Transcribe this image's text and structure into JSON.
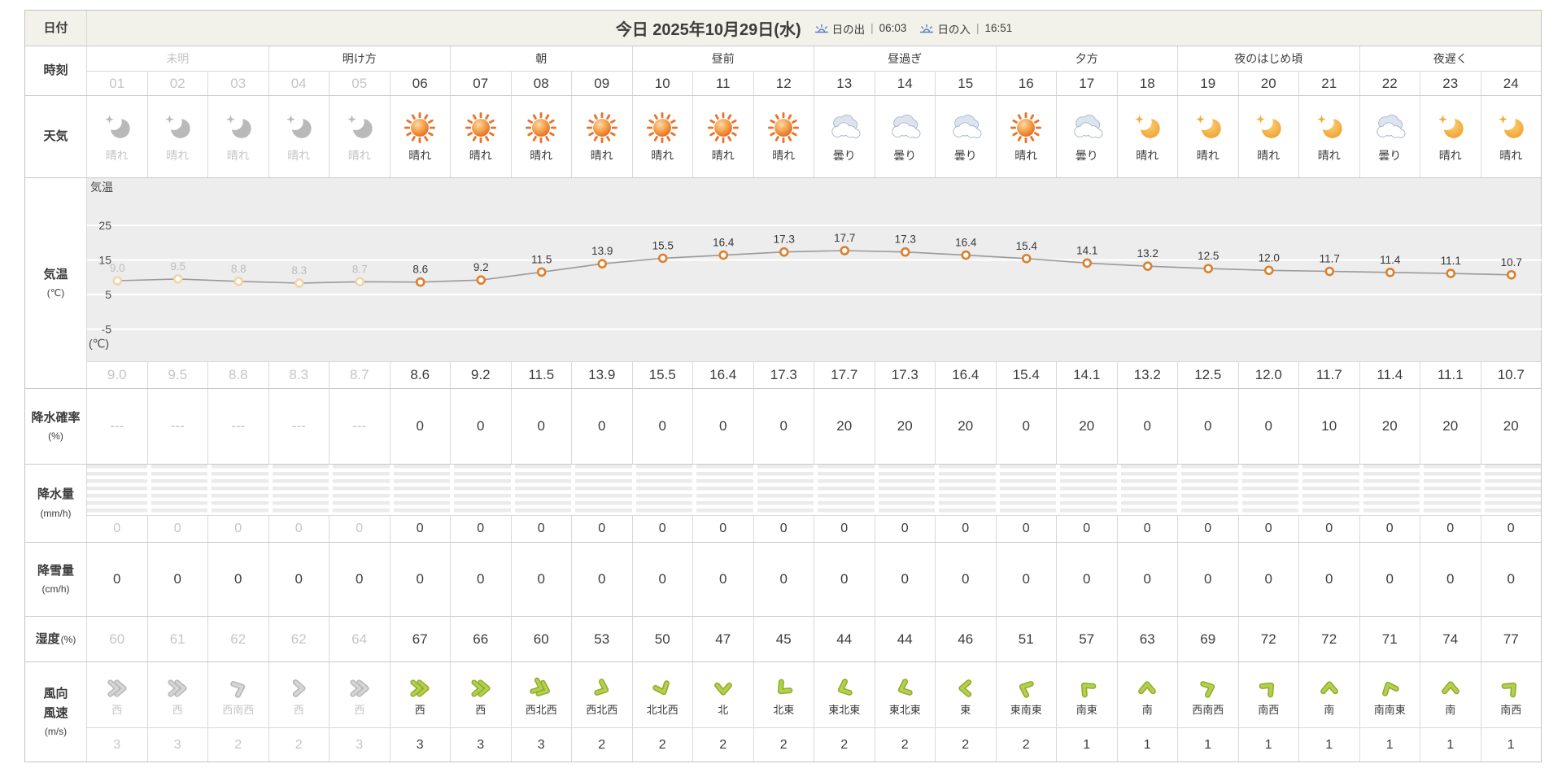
{
  "colors": {
    "text": "#3c3c3c",
    "past_text": "#c5c5c5",
    "date_row_bg": "#f2f2ea",
    "chart_bg": "#ededed",
    "border": "#c9c9c9",
    "sun_orange": "#e8732e",
    "moon_orange": "#f0a733",
    "cloud_blue": "#dde4f0",
    "wind_green": "#9db53b",
    "point_orange": "#dd7f2b",
    "point_past": "#f2d4a6",
    "sunrise_icon_blue": "#5b7cc4"
  },
  "date_row": {
    "label": "日付",
    "title": "今日 2025年10月29日(水)",
    "sunrise": {
      "icon": "sunrise-icon",
      "label": "日の出",
      "sep": "|",
      "time": "06:03"
    },
    "sunset": {
      "icon": "sunset-icon",
      "label": "日の入",
      "sep": "|",
      "time": "16:51"
    }
  },
  "time_row": {
    "label": "時刻",
    "past_hours": 5,
    "periods": [
      {
        "label": "未明",
        "past": true
      },
      {
        "label": "明け方"
      },
      {
        "label": "朝"
      },
      {
        "label": "昼前"
      },
      {
        "label": "昼過ぎ"
      },
      {
        "label": "夕方"
      },
      {
        "label": "夜のはじめ頃"
      },
      {
        "label": "夜遅く"
      }
    ],
    "hours": [
      "01",
      "02",
      "03",
      "04",
      "05",
      "06",
      "07",
      "08",
      "09",
      "10",
      "11",
      "12",
      "13",
      "14",
      "15",
      "16",
      "17",
      "18",
      "19",
      "20",
      "21",
      "22",
      "23",
      "24"
    ]
  },
  "weather_row": {
    "label": "天気",
    "cells": [
      {
        "icon": "moon",
        "text": "晴れ"
      },
      {
        "icon": "moon",
        "text": "晴れ"
      },
      {
        "icon": "moon",
        "text": "晴れ"
      },
      {
        "icon": "moon",
        "text": "晴れ"
      },
      {
        "icon": "moon",
        "text": "晴れ"
      },
      {
        "icon": "sun",
        "text": "晴れ"
      },
      {
        "icon": "sun",
        "text": "晴れ"
      },
      {
        "icon": "sun",
        "text": "晴れ"
      },
      {
        "icon": "sun",
        "text": "晴れ"
      },
      {
        "icon": "sun",
        "text": "晴れ"
      },
      {
        "icon": "sun",
        "text": "晴れ"
      },
      {
        "icon": "sun",
        "text": "晴れ"
      },
      {
        "icon": "cloud",
        "text": "曇り"
      },
      {
        "icon": "cloud",
        "text": "曇り"
      },
      {
        "icon": "cloud",
        "text": "曇り"
      },
      {
        "icon": "sun",
        "text": "晴れ"
      },
      {
        "icon": "cloud",
        "text": "曇り"
      },
      {
        "icon": "moon",
        "text": "晴れ"
      },
      {
        "icon": "moon",
        "text": "晴れ"
      },
      {
        "icon": "moon",
        "text": "晴れ"
      },
      {
        "icon": "moon",
        "text": "晴れ"
      },
      {
        "icon": "cloud",
        "text": "曇り"
      },
      {
        "icon": "moon",
        "text": "晴れ"
      },
      {
        "icon": "moon",
        "text": "晴れ"
      }
    ]
  },
  "temp_row": {
    "label": "気温",
    "unit": "(℃)",
    "values": [
      "9.0",
      "9.5",
      "8.8",
      "8.3",
      "8.7",
      "8.6",
      "9.2",
      "11.5",
      "13.9",
      "15.5",
      "16.4",
      "17.3",
      "17.7",
      "17.3",
      "16.4",
      "15.4",
      "14.1",
      "13.2",
      "12.5",
      "12.0",
      "11.7",
      "11.4",
      "11.1",
      "10.7"
    ]
  },
  "chart_data": {
    "type": "line",
    "title": "気温",
    "ylabel": "気温",
    "y_unit": "(℃)",
    "x_hours": [
      1,
      2,
      3,
      4,
      5,
      6,
      7,
      8,
      9,
      10,
      11,
      12,
      13,
      14,
      15,
      16,
      17,
      18,
      19,
      20,
      21,
      22,
      23,
      24
    ],
    "values": [
      9.0,
      9.5,
      8.8,
      8.3,
      8.7,
      8.6,
      9.2,
      11.5,
      13.9,
      15.5,
      16.4,
      17.3,
      17.7,
      17.3,
      16.4,
      15.4,
      14.1,
      13.2,
      12.5,
      12.0,
      11.7,
      11.4,
      11.1,
      10.7
    ],
    "yticks": [
      25,
      15,
      5,
      -5
    ],
    "ylim": [
      -10,
      30
    ],
    "grid": true,
    "past_points": 5
  },
  "pop_row": {
    "label": "降水確率",
    "unit": "(%)",
    "values": [
      "---",
      "---",
      "---",
      "---",
      "---",
      "0",
      "0",
      "0",
      "0",
      "0",
      "0",
      "0",
      "20",
      "20",
      "20",
      "0",
      "20",
      "0",
      "0",
      "0",
      "10",
      "20",
      "20",
      "20"
    ]
  },
  "rain_row": {
    "label": "降水量",
    "unit": "(mm/h)",
    "values": [
      "0",
      "0",
      "0",
      "0",
      "0",
      "0",
      "0",
      "0",
      "0",
      "0",
      "0",
      "0",
      "0",
      "0",
      "0",
      "0",
      "0",
      "0",
      "0",
      "0",
      "0",
      "0",
      "0",
      "0"
    ]
  },
  "snow_row": {
    "label": "降雪量",
    "unit": "(cm/h)",
    "values": [
      "0",
      "0",
      "0",
      "0",
      "0",
      "0",
      "0",
      "0",
      "0",
      "0",
      "0",
      "0",
      "0",
      "0",
      "0",
      "0",
      "0",
      "0",
      "0",
      "0",
      "0",
      "0",
      "0",
      "0"
    ]
  },
  "humidity_row": {
    "label": "湿度",
    "unit": "(%)",
    "values": [
      "60",
      "61",
      "62",
      "62",
      "64",
      "67",
      "66",
      "60",
      "53",
      "50",
      "47",
      "45",
      "44",
      "44",
      "46",
      "51",
      "57",
      "63",
      "69",
      "72",
      "72",
      "71",
      "74",
      "77"
    ]
  },
  "wind_row": {
    "label1": "風向",
    "label2": "風速",
    "unit": "(m/s)",
    "directions": [
      "西",
      "西",
      "西南西",
      "西",
      "西",
      "西",
      "西",
      "西北西",
      "西北西",
      "北北西",
      "北",
      "北東",
      "東北東",
      "東北東",
      "東",
      "東南東",
      "南東",
      "南",
      "西南西",
      "南西",
      "南",
      "南南東",
      "南",
      "南西"
    ],
    "speeds": [
      3,
      3,
      2,
      2,
      3,
      3,
      3,
      3,
      2,
      2,
      2,
      2,
      2,
      2,
      2,
      2,
      1,
      1,
      1,
      1,
      1,
      1,
      1,
      1
    ]
  }
}
